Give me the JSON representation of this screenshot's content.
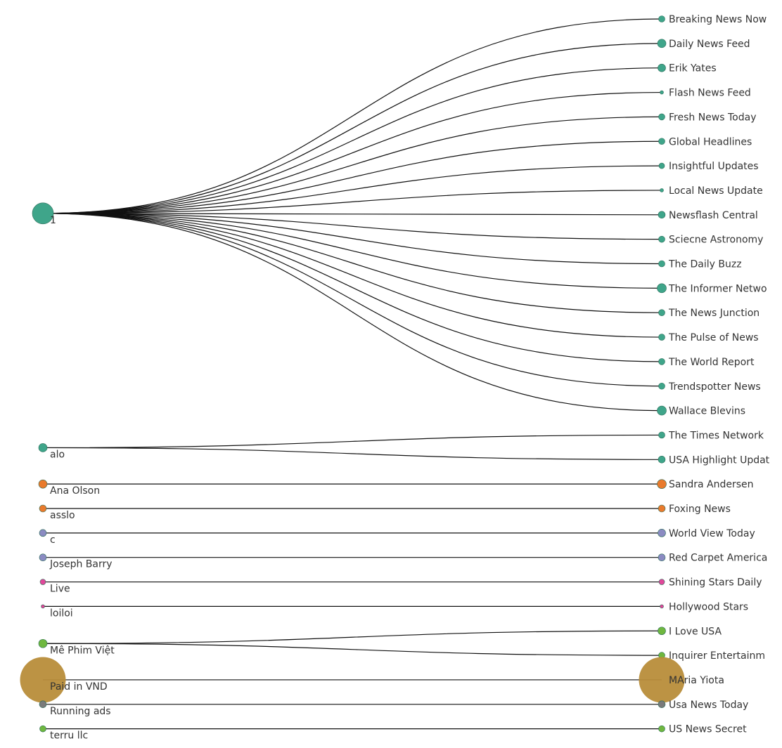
{
  "chart_data": {
    "type": "sankey-tree",
    "sources": [
      {
        "id": "1",
        "label": "1",
        "color": "#3fa58a",
        "size": 3
      },
      {
        "id": "alo",
        "label": "alo",
        "color": "#3fa58a",
        "size": 1.2
      },
      {
        "id": "ana",
        "label": "Ana Olson",
        "color": "#e97a2c",
        "size": 1.2
      },
      {
        "id": "asslo",
        "label": "asslo",
        "color": "#e97a2c",
        "size": 1
      },
      {
        "id": "c",
        "label": "c",
        "color": "#8b8bc2",
        "size": 1
      },
      {
        "id": "joseph",
        "label": "Joseph Barry",
        "color": "#8b8bc2",
        "size": 1
      },
      {
        "id": "live",
        "label": "Live",
        "color": "#e0489a",
        "size": 0.8
      },
      {
        "id": "loiloi",
        "label": "loiloi",
        "color": "#e0489a",
        "size": 0.5
      },
      {
        "id": "mephim",
        "label": "Mê Phim Việt",
        "color": "#6fb73f",
        "size": 1.2
      },
      {
        "id": "paid",
        "label": "Paid in VND",
        "color": "#b88d3a",
        "size": 6.5
      },
      {
        "id": "running",
        "label": "Running ads",
        "color": "#7a7a7a",
        "size": 1
      },
      {
        "id": "terru",
        "label": "terru llc",
        "color": "#6fb73f",
        "size": 0.9
      }
    ],
    "targets": [
      {
        "label": "Breaking News Now",
        "source": "1",
        "color": "#3fa58a",
        "size": 0.9
      },
      {
        "label": "Daily News Feed",
        "source": "1",
        "color": "#3fa58a",
        "size": 1.2
      },
      {
        "label": "Erik Yates",
        "source": "1",
        "color": "#3fa58a",
        "size": 1.1
      },
      {
        "label": "Flash News Feed",
        "source": "1",
        "color": "#3fa58a",
        "size": 0.5
      },
      {
        "label": "Fresh News Today",
        "source": "1",
        "color": "#3fa58a",
        "size": 0.9
      },
      {
        "label": "Global Headlines",
        "source": "1",
        "color": "#3fa58a",
        "size": 0.9
      },
      {
        "label": "Insightful Updates",
        "source": "1",
        "color": "#3fa58a",
        "size": 0.8
      },
      {
        "label": "Local News Update",
        "source": "1",
        "color": "#3fa58a",
        "size": 0.5
      },
      {
        "label": "Newsflash Central",
        "source": "1",
        "color": "#3fa58a",
        "size": 1.0
      },
      {
        "label": "Sciecne Astronomy",
        "source": "1",
        "color": "#3fa58a",
        "size": 0.9
      },
      {
        "label": "The Daily Buzz",
        "source": "1",
        "color": "#3fa58a",
        "size": 0.9
      },
      {
        "label": "The Informer Netwo",
        "source": "1",
        "color": "#3fa58a",
        "size": 1.3
      },
      {
        "label": "The News Junction",
        "source": "1",
        "color": "#3fa58a",
        "size": 0.9
      },
      {
        "label": "The Pulse of News",
        "source": "1",
        "color": "#3fa58a",
        "size": 0.9
      },
      {
        "label": "The World Report",
        "source": "1",
        "color": "#3fa58a",
        "size": 0.9
      },
      {
        "label": "Trendspotter News",
        "source": "1",
        "color": "#3fa58a",
        "size": 0.9
      },
      {
        "label": "Wallace Blevins",
        "source": "1",
        "color": "#3fa58a",
        "size": 1.3
      },
      {
        "label": "The Times Network",
        "source": "alo",
        "color": "#3fa58a",
        "size": 0.9
      },
      {
        "label": "USA Highlight Updat",
        "source": "alo",
        "color": "#3fa58a",
        "size": 1.0
      },
      {
        "label": "Sandra Andersen",
        "source": "ana",
        "color": "#e97a2c",
        "size": 1.3
      },
      {
        "label": "Foxing News",
        "source": "asslo",
        "color": "#e97a2c",
        "size": 1.0
      },
      {
        "label": "World View Today",
        "source": "c",
        "color": "#8b8bc2",
        "size": 1.1
      },
      {
        "label": "Red Carpet America",
        "source": "joseph",
        "color": "#8b8bc2",
        "size": 1.0
      },
      {
        "label": "Shining Stars Daily",
        "source": "live",
        "color": "#e0489a",
        "size": 0.8
      },
      {
        "label": "Hollywood Stars",
        "source": "loiloi",
        "color": "#e0489a",
        "size": 0.5
      },
      {
        "label": "I Love USA",
        "source": "mephim",
        "color": "#6fb73f",
        "size": 1.1
      },
      {
        "label": "Inquirer Entertainm",
        "source": "mephim",
        "color": "#6fb73f",
        "size": 0.9
      },
      {
        "label": "MAria Yiota",
        "source": "paid",
        "color": "#b88d3a",
        "size": 6.5
      },
      {
        "label": "Usa News Today",
        "source": "running",
        "color": "#7a7a7a",
        "size": 1.0
      },
      {
        "label": "US News Secret",
        "source": "terru",
        "color": "#6fb73f",
        "size": 0.9
      }
    ]
  }
}
